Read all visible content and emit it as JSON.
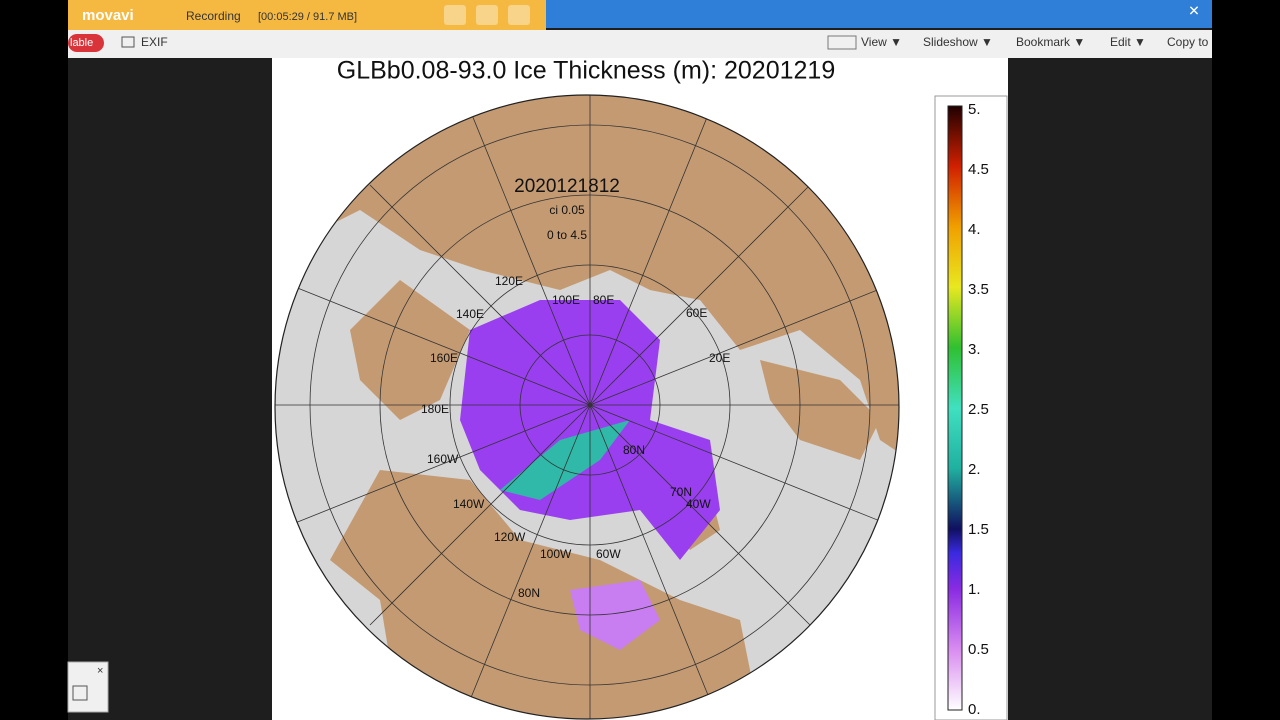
{
  "recorder": {
    "logo": "movavi",
    "status": "Recording",
    "info": "[00:05:29 / 91.7 MB]"
  },
  "toolbar": {
    "tab": "lable",
    "exif": "EXIF",
    "view": "View ▼",
    "slideshow": "Slideshow ▼",
    "bookmark": "Bookmark ▼",
    "edit": "Edit ▼",
    "copy": "Copy to"
  },
  "map": {
    "title": "GLBb0.08-93.0 Ice Thickness (m): 20201219",
    "stamp": "2020121812",
    "interval": "ci 0.05",
    "range": "0 to 4.5",
    "labels": [
      "120E",
      "140E",
      "100E",
      "80E",
      "60E",
      "20E",
      "160E",
      "180E",
      "160W",
      "140W",
      "120W",
      "100W",
      "60W",
      "80N",
      "80N",
      "70N",
      "40W"
    ]
  },
  "colorbar": {
    "labels": [
      "5.",
      "4.5",
      "4.",
      "3.5",
      "3.",
      "2.5",
      "2.",
      "1.5",
      "1.",
      "0.5",
      "0."
    ]
  }
}
